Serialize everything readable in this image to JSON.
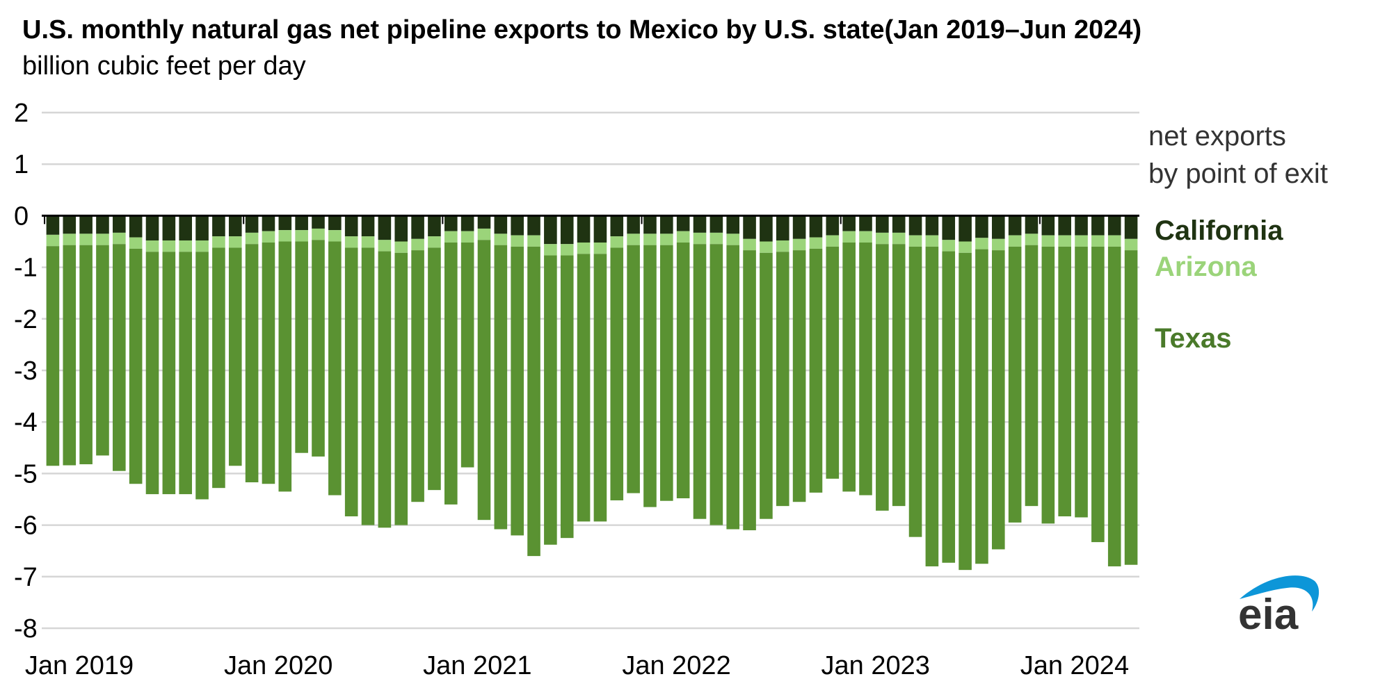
{
  "chart_data": {
    "type": "bar",
    "stacked": true,
    "title": "U.S. monthly natural gas net pipeline exports to Mexico by U.S. state(Jan 2019–Jun 2024)",
    "ylabel": "billion cubic feet per day",
    "ylim": [
      -8,
      2
    ],
    "yticks": [
      2,
      1,
      0,
      -1,
      -2,
      -3,
      -4,
      -5,
      -6,
      -7,
      -8
    ],
    "x_start": "2019-01",
    "x_end": "2024-06",
    "xtick_labels": [
      "Jan 2019",
      "Jan 2020",
      "Jan 2021",
      "Jan 2022",
      "Jan 2023",
      "Jan 2024"
    ],
    "grid": true,
    "legend_title": [
      "net exports",
      "by point of exit"
    ],
    "legend_placement": "right",
    "series": [
      {
        "name": "California",
        "color": "#1f3312",
        "values": [
          -0.37,
          -0.35,
          -0.35,
          -0.35,
          -0.33,
          -0.42,
          -0.48,
          -0.48,
          -0.48,
          -0.48,
          -0.4,
          -0.4,
          -0.33,
          -0.3,
          -0.28,
          -0.28,
          -0.25,
          -0.28,
          -0.4,
          -0.4,
          -0.47,
          -0.5,
          -0.45,
          -0.4,
          -0.3,
          -0.3,
          -0.25,
          -0.35,
          -0.38,
          -0.38,
          -0.55,
          -0.55,
          -0.52,
          -0.52,
          -0.4,
          -0.35,
          -0.35,
          -0.35,
          -0.3,
          -0.33,
          -0.33,
          -0.35,
          -0.45,
          -0.5,
          -0.48,
          -0.45,
          -0.42,
          -0.38,
          -0.3,
          -0.3,
          -0.33,
          -0.33,
          -0.38,
          -0.38,
          -0.47,
          -0.5,
          -0.43,
          -0.45,
          -0.38,
          -0.35,
          -0.38,
          -0.38,
          -0.38,
          -0.38,
          -0.38,
          -0.45
        ]
      },
      {
        "name": "Arizona",
        "color": "#9bd47a",
        "values": [
          -0.22,
          -0.22,
          -0.22,
          -0.22,
          -0.22,
          -0.22,
          -0.22,
          -0.22,
          -0.22,
          -0.22,
          -0.22,
          -0.22,
          -0.22,
          -0.22,
          -0.22,
          -0.22,
          -0.22,
          -0.22,
          -0.22,
          -0.22,
          -0.22,
          -0.22,
          -0.22,
          -0.22,
          -0.22,
          -0.22,
          -0.22,
          -0.22,
          -0.22,
          -0.22,
          -0.22,
          -0.22,
          -0.22,
          -0.22,
          -0.22,
          -0.22,
          -0.22,
          -0.22,
          -0.22,
          -0.22,
          -0.22,
          -0.22,
          -0.22,
          -0.22,
          -0.22,
          -0.22,
          -0.22,
          -0.22,
          -0.22,
          -0.22,
          -0.22,
          -0.22,
          -0.22,
          -0.22,
          -0.22,
          -0.22,
          -0.22,
          -0.22,
          -0.22,
          -0.22,
          -0.22,
          -0.22,
          -0.22,
          -0.22,
          -0.22,
          -0.22
        ]
      },
      {
        "name": "Texas",
        "color": "#5a9232",
        "values": [
          -4.26,
          -4.27,
          -4.25,
          -4.08,
          -4.4,
          -4.56,
          -4.7,
          -4.7,
          -4.7,
          -4.8,
          -4.66,
          -4.23,
          -4.62,
          -4.68,
          -4.85,
          -4.1,
          -4.2,
          -4.92,
          -5.21,
          -5.38,
          -5.36,
          -5.28,
          -4.88,
          -4.7,
          -5.08,
          -4.36,
          -5.43,
          -5.51,
          -5.6,
          -6.0,
          -5.61,
          -5.48,
          -5.19,
          -5.19,
          -4.9,
          -4.81,
          -5.08,
          -4.96,
          -4.96,
          -5.33,
          -5.45,
          -5.51,
          -5.43,
          -5.16,
          -4.93,
          -4.88,
          -4.73,
          -4.5,
          -4.83,
          -4.9,
          -5.17,
          -5.08,
          -5.63,
          -6.2,
          -6.04,
          -6.15,
          -6.1,
          -5.8,
          -5.35,
          -5.06,
          -5.37,
          -5.23,
          -5.25,
          -5.73,
          -6.2,
          -6.1
        ]
      }
    ]
  },
  "logo_text": "eia"
}
